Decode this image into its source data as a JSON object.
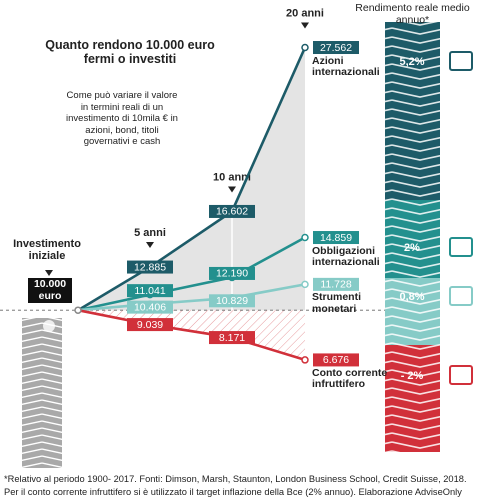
{
  "chart_data": {
    "type": "line",
    "title": "Quanto rendono 10.000 euro fermi o investiti",
    "subtitle": "Come può variare il valore in termini reali di un investimento di 10mila € in azioni, bond, titoli governativi e cash",
    "categories": [
      "Investimento iniziale",
      "5 anni",
      "10 anni",
      "20 anni"
    ],
    "initial_label": "10.000 euro",
    "ylim": [
      5000,
      29000
    ],
    "returns_title": "Rendimento reale medio annuo*",
    "series": [
      {
        "name": "Azioni internazionali",
        "color": "#1d5b68",
        "values": [
          10000,
          12885,
          16602,
          27562
        ],
        "value_labels": [
          null,
          "12.885",
          "16.602",
          "27.562"
        ],
        "annual_return": 5.2,
        "annual_return_label": "5,2%"
      },
      {
        "name": "Obbligazioni internazionali",
        "color": "#23908e",
        "values": [
          10000,
          11041,
          12190,
          14859
        ],
        "value_labels": [
          null,
          "11.041",
          "12.190",
          "14.859"
        ],
        "annual_return": 2,
        "annual_return_label": "2%"
      },
      {
        "name": "Strumenti monetari",
        "color": "#86cbc7",
        "values": [
          10000,
          10406,
          10829,
          11728
        ],
        "value_labels": [
          null,
          "10.406",
          "10.829",
          "11.728"
        ],
        "annual_return": 0.8,
        "annual_return_label": "0,8%"
      },
      {
        "name": "Conto corrente infruttifero",
        "color": "#d1303a",
        "values": [
          10000,
          9039,
          8171,
          6676
        ],
        "value_labels": [
          null,
          "9.039",
          "8.171",
          "6.676"
        ],
        "annual_return": -2,
        "annual_return_label": "- 2%"
      }
    ],
    "footnotes": [
      "*Relativo al periodo 1900- 2017. Fonti: Dimson, Marsh, Staunton, London Business School, Credit Suisse, 2018.",
      "Per il conto corrente infruttifero si è utilizzato il target inflazione della Bce (2% annuo). Elaborazione AdviseOnly"
    ]
  }
}
